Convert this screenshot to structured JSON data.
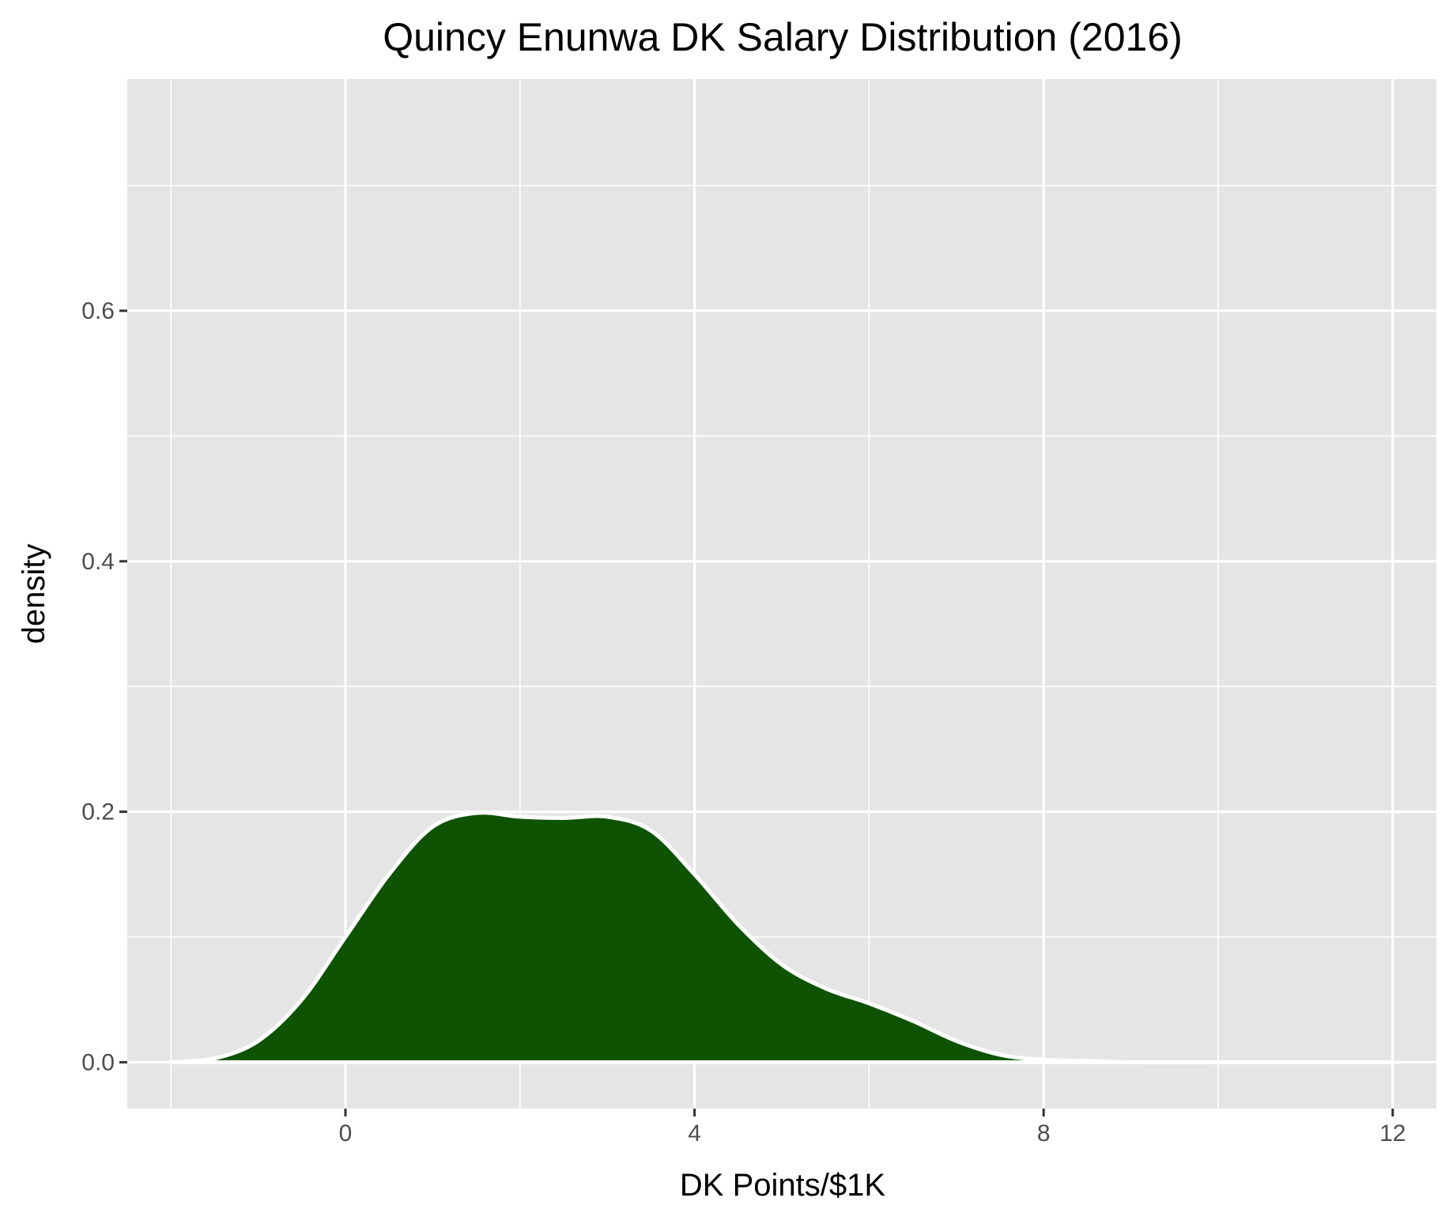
{
  "chart_data": {
    "type": "area",
    "title": "Quincy Enunwa DK Salary Distribution (2016)",
    "xlabel": "DK Points/$1K",
    "ylabel": "density",
    "xlim": [
      -2.5,
      12.5
    ],
    "ylim": [
      -0.037,
      0.785
    ],
    "x_ticks": [
      0,
      4,
      8,
      12
    ],
    "x_tick_labels": [
      "0",
      "4",
      "8",
      "12"
    ],
    "y_ticks": [
      0.0,
      0.2,
      0.4,
      0.6
    ],
    "y_tick_labels": [
      "0.0",
      "0.2",
      "0.4",
      "0.6"
    ],
    "grid": true,
    "series": [
      {
        "x": [
          -2.0,
          -1.5,
          -1.0,
          -0.5,
          0.0,
          0.5,
          1.0,
          1.5,
          2.0,
          2.5,
          3.0,
          3.5,
          4.0,
          4.5,
          5.0,
          5.5,
          6.0,
          6.5,
          7.0,
          7.5,
          8.0,
          8.5,
          9.0,
          10.0,
          11.0,
          12.0
        ],
        "y": [
          0.0,
          0.003,
          0.017,
          0.05,
          0.1,
          0.15,
          0.188,
          0.199,
          0.196,
          0.195,
          0.196,
          0.185,
          0.15,
          0.11,
          0.078,
          0.059,
          0.047,
          0.033,
          0.017,
          0.006,
          0.002,
          0.001,
          0.0,
          0.0,
          0.0,
          0.0
        ]
      }
    ],
    "colors": {
      "panel": "#e5e5e5",
      "grid": "#ffffff",
      "fill": "#0d5302",
      "outline": "#ffffff",
      "tick_mark": "#333333",
      "tick_label": "#4d4d4d"
    }
  }
}
